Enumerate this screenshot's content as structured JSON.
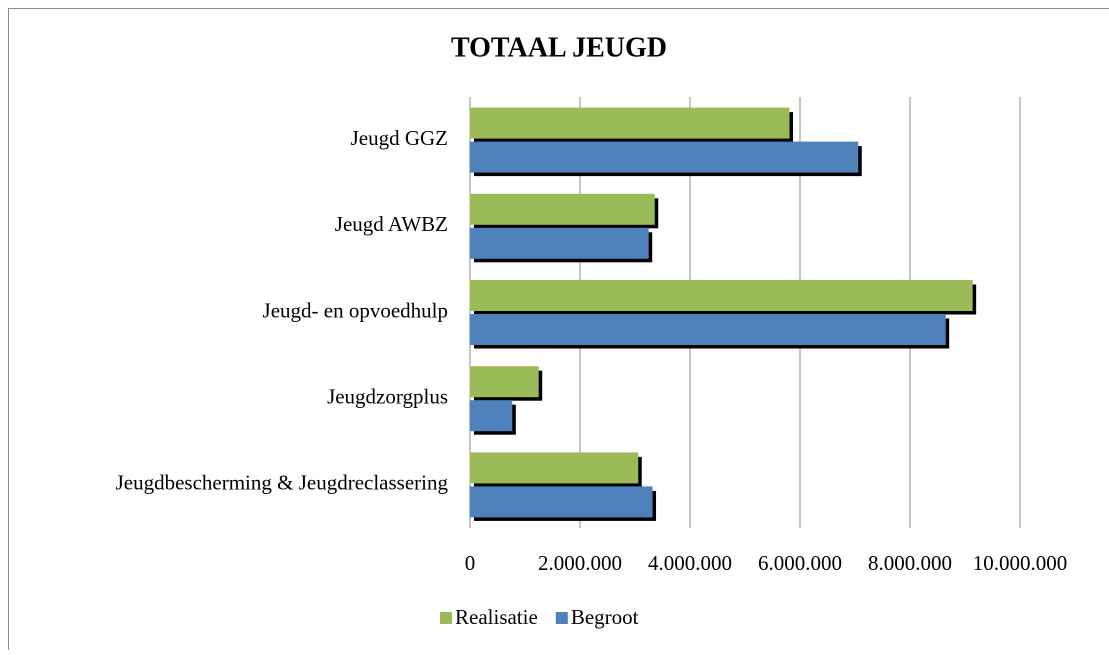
{
  "chart_data": {
    "type": "bar",
    "orientation": "horizontal",
    "title": "TOTAAL JEUGD",
    "categories": [
      "Jeugd GGZ",
      "Jeugd AWBZ",
      "Jeugd- en opvoedhulp",
      "Jeugdzorgplus",
      "Jeugdbescherming & Jeugdreclassering"
    ],
    "series": [
      {
        "name": "Realisatie",
        "color": "#9bbb59",
        "values": [
          5800000,
          3350000,
          9130000,
          1240000,
          3050000
        ]
      },
      {
        "name": "Begroot",
        "color": "#4f81bd",
        "values": [
          7050000,
          3240000,
          8640000,
          760000,
          3310000
        ]
      }
    ],
    "xlim": [
      0,
      10000000
    ],
    "xticks": [
      0,
      {
        "value": 2000000,
        "label": "2.000.000"
      },
      {
        "value": 4000000,
        "label": "4.000.000"
      },
      {
        "value": 6000000,
        "label": "6.000.000"
      },
      {
        "value": 8000000,
        "label": "8.000.000"
      },
      {
        "value": 10000000,
        "label": "10.000.000"
      }
    ],
    "grid": true,
    "legend": "bottom"
  }
}
